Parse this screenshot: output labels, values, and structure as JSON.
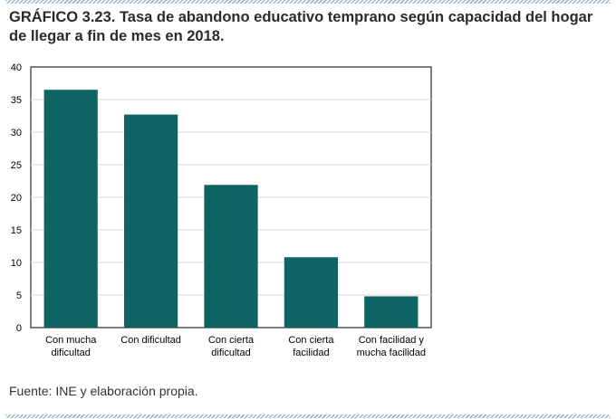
{
  "title": "GRÁFICO 3.23. Tasa de abandono educativo temprano según capacidad del hogar de llegar a fin de mes en 2018.",
  "source": "Fuente: INE y elaboración propia.",
  "colors": {
    "bar": "#0d6462",
    "grid": "#d9d9d9",
    "axis": "#000000",
    "rule": "#9cb6cc"
  },
  "chart_data": {
    "type": "bar",
    "title": "",
    "xlabel": "",
    "ylabel": "",
    "categories": [
      [
        "Con mucha",
        "dificultad"
      ],
      [
        "Con dificultad"
      ],
      [
        "Con cierta",
        "dificultad"
      ],
      [
        "Con cierta",
        "facilidad"
      ],
      [
        "Con facilidad y",
        "mucha facilidad"
      ]
    ],
    "values": [
      36.5,
      32.7,
      21.9,
      10.8,
      4.8
    ],
    "ylim": [
      0,
      40
    ],
    "yticks": [
      0,
      5,
      10,
      15,
      20,
      25,
      30,
      35,
      40
    ],
    "grid": true,
    "legend": "none"
  }
}
